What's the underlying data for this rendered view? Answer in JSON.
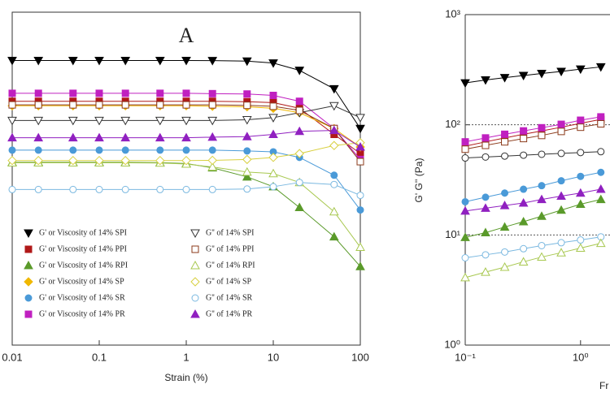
{
  "chart_data": [
    {
      "type": "line",
      "title": "A",
      "xlabel": "Strain (%)",
      "log_x": true,
      "log_y": true,
      "xlim": [
        0.01,
        100
      ],
      "ylim": [
        0.1,
        1000
      ],
      "xticks": [
        0.01,
        0.1,
        1,
        10,
        100
      ],
      "x": [
        0.01,
        0.02,
        0.05,
        0.1,
        0.2,
        0.5,
        1,
        2,
        5,
        10,
        20,
        50,
        100
      ],
      "legend": "lower-left",
      "series": [
        {
          "name": "G' or Viscosity of 14% SPI",
          "color": "#000000",
          "marker": "down-triangle",
          "filled": true,
          "values": [
            263,
            263,
            263,
            263,
            263,
            263,
            263,
            262,
            258,
            245,
            200,
            120,
            40
          ]
        },
        {
          "name": "G' or Viscosity of 14% PPI",
          "color": "#b01818",
          "marker": "square",
          "filled": true,
          "values": [
            85,
            85,
            85,
            85,
            85,
            85,
            85,
            85,
            84,
            82,
            70,
            34,
            20
          ]
        },
        {
          "name": "G' or Viscosity of 14% RPI",
          "color": "#5a9a2a",
          "marker": "triangle",
          "filled": true,
          "values": [
            15.7,
            15.7,
            15.7,
            15.7,
            15.7,
            15.6,
            15.2,
            13.5,
            10.5,
            8,
            4.5,
            2,
            0.88
          ]
        },
        {
          "name": "G' or Viscosity of 14% SP",
          "color": "#f0b800",
          "marker": "diamond",
          "filled": true,
          "values": [
            75,
            75,
            75,
            75,
            75,
            75,
            75,
            74,
            73,
            70,
            62,
            40,
            24
          ]
        },
        {
          "name": "G' or Viscosity of 14% SR",
          "color": "#4a9ad8",
          "marker": "circle",
          "filled": true,
          "values": [
            22,
            22,
            22,
            22,
            22,
            22,
            22,
            22,
            21.5,
            21,
            18,
            11,
            4.2
          ]
        },
        {
          "name": "G' or Viscosity of 14% PR",
          "color": "#c020c0",
          "marker": "square",
          "filled": true,
          "values": [
            106,
            106,
            106,
            106,
            106,
            106,
            106,
            105,
            104,
            100,
            85,
            40,
            17
          ]
        },
        {
          "name": "G'' of 14% SPI",
          "color": "#333333",
          "marker": "down-triangle",
          "filled": false,
          "values": [
            50,
            50,
            50,
            50,
            50,
            50,
            50,
            50,
            51,
            54,
            62,
            75,
            54
          ]
        },
        {
          "name": "G'' of 14% PPI",
          "color": "#8b3a1a",
          "marker": "square",
          "filled": false,
          "values": [
            77,
            77,
            77,
            77,
            77,
            77,
            77,
            77,
            76,
            74,
            66,
            40,
            16
          ]
        },
        {
          "name": "G'' of 14% RPI",
          "color": "#a8c850",
          "marker": "triangle",
          "filled": false,
          "values": [
            15.5,
            15.5,
            15.5,
            15.5,
            15.5,
            15.4,
            15,
            13.8,
            12,
            11.5,
            9,
            4,
            1.5
          ]
        },
        {
          "name": "G'' of 14% SP",
          "color": "#d8d040",
          "marker": "diamond",
          "filled": false,
          "values": [
            16.5,
            16.5,
            16.5,
            16.5,
            16.5,
            16.5,
            16.5,
            16.6,
            17,
            18,
            20,
            25,
            27
          ]
        },
        {
          "name": "G'' of 14% SR",
          "color": "#7ab8e0",
          "marker": "circle",
          "filled": false,
          "values": [
            7.4,
            7.4,
            7.4,
            7.4,
            7.4,
            7.4,
            7.4,
            7.4,
            7.5,
            8,
            9,
            8.5,
            6.3
          ]
        },
        {
          "name": "G'' of 14% PR",
          "color": "#9020c0",
          "marker": "triangle",
          "filled": true,
          "values": [
            31,
            31,
            31,
            31,
            31,
            31,
            31,
            31.5,
            32,
            34,
            37,
            38,
            24
          ]
        }
      ]
    },
    {
      "type": "line",
      "ylabel": "G' G'' (Pa)",
      "xlabel": "Fr",
      "log_x": true,
      "log_y": true,
      "xlim": [
        0.1,
        1.8
      ],
      "ylim": [
        1,
        1000
      ],
      "xticks": [
        {
          "value": 0.1,
          "label": "10⁻¹"
        },
        {
          "value": 1,
          "label": "10⁰"
        }
      ],
      "yticks": [
        {
          "value": 1,
          "label": "10⁰"
        },
        {
          "value": 10,
          "label": "10¹"
        },
        {
          "value": 100,
          "label": "10²"
        },
        {
          "value": 1000,
          "label": "10³"
        }
      ],
      "hlines": [
        10,
        100
      ],
      "x": [
        0.1,
        0.15,
        0.22,
        0.32,
        0.46,
        0.68,
        1,
        1.5
      ],
      "series": [
        {
          "color": "#000000",
          "marker": "down-triangle",
          "filled": true,
          "values": [
            240,
            255,
            268,
            280,
            292,
            305,
            320,
            335
          ]
        },
        {
          "color": "#b01818",
          "marker": "square",
          "filled": true,
          "values": [
            64,
            70,
            76,
            82,
            88,
            95,
            103,
            112
          ]
        },
        {
          "color": "#c020c0",
          "marker": "square",
          "filled": true,
          "values": [
            70,
            76,
            82,
            88,
            94,
            101,
            110,
            118
          ]
        },
        {
          "color": "#8b3a1a",
          "marker": "square",
          "filled": false,
          "values": [
            60,
            65,
            70,
            75,
            80,
            87,
            95,
            102
          ]
        },
        {
          "color": "#333333",
          "marker": "circle",
          "filled": false,
          "values": [
            50,
            51,
            52,
            53,
            54,
            55,
            56,
            57
          ]
        },
        {
          "color": "#4a9ad8",
          "marker": "circle",
          "filled": true,
          "values": [
            20,
            22,
            24,
            26,
            28,
            31,
            34,
            37
          ]
        },
        {
          "color": "#9020c0",
          "marker": "triangle",
          "filled": true,
          "values": [
            16.5,
            17.5,
            18.5,
            19.5,
            21,
            22.5,
            24,
            26
          ]
        },
        {
          "color": "#5a9a2a",
          "marker": "triangle",
          "filled": true,
          "values": [
            9.5,
            10.5,
            11.8,
            13.2,
            14.8,
            16.8,
            19,
            21
          ]
        },
        {
          "color": "#7ab8e0",
          "marker": "circle",
          "filled": false,
          "values": [
            6.2,
            6.6,
            7,
            7.5,
            8,
            8.5,
            9,
            9.6
          ]
        },
        {
          "color": "#a8c850",
          "marker": "triangle",
          "filled": false,
          "values": [
            4.1,
            4.6,
            5.1,
            5.7,
            6.3,
            6.9,
            7.6,
            8.4
          ]
        }
      ]
    }
  ]
}
